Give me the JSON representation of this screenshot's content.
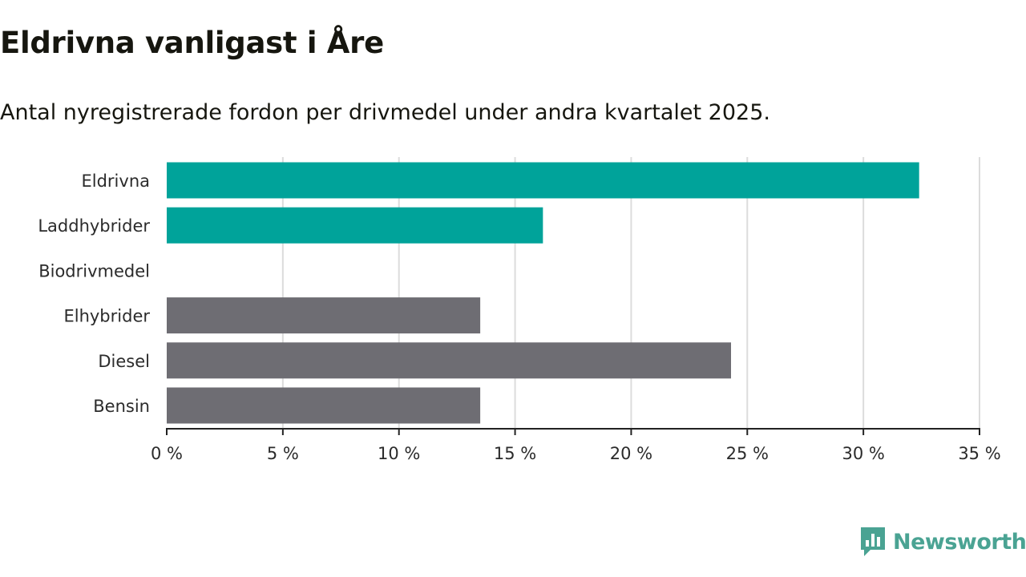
{
  "header": {
    "title": "Eldrivna vanligast i Åre",
    "subtitle": "Antal nyregistrerade fordon per drivmedel under andra kvartalet 2025."
  },
  "chart_data": {
    "type": "bar",
    "orientation": "horizontal",
    "categories": [
      "Eldrivna",
      "Laddhybrider",
      "Biodrivmedel",
      "Elhybrider",
      "Diesel",
      "Bensin"
    ],
    "values": [
      32.4,
      16.2,
      0,
      13.5,
      24.3,
      13.5
    ],
    "colors": [
      "#00a39a",
      "#00a39a",
      "#6e6d73",
      "#6e6d73",
      "#6e6d73",
      "#6e6d73"
    ],
    "xlim": [
      0,
      35
    ],
    "xticks": [
      0,
      5,
      10,
      15,
      20,
      25,
      30,
      35
    ],
    "tick_labels": [
      "0 %",
      "5 %",
      "10 %",
      "15 %",
      "20 %",
      "25 %",
      "30 %",
      "35 %"
    ],
    "xlabel": "",
    "ylabel": "",
    "grid": "vertical"
  },
  "branding": {
    "logo_text": "Newsworthy",
    "logo_color": "#4aa393",
    "logo_icon": "bar-chart-speech-bubble-icon"
  }
}
